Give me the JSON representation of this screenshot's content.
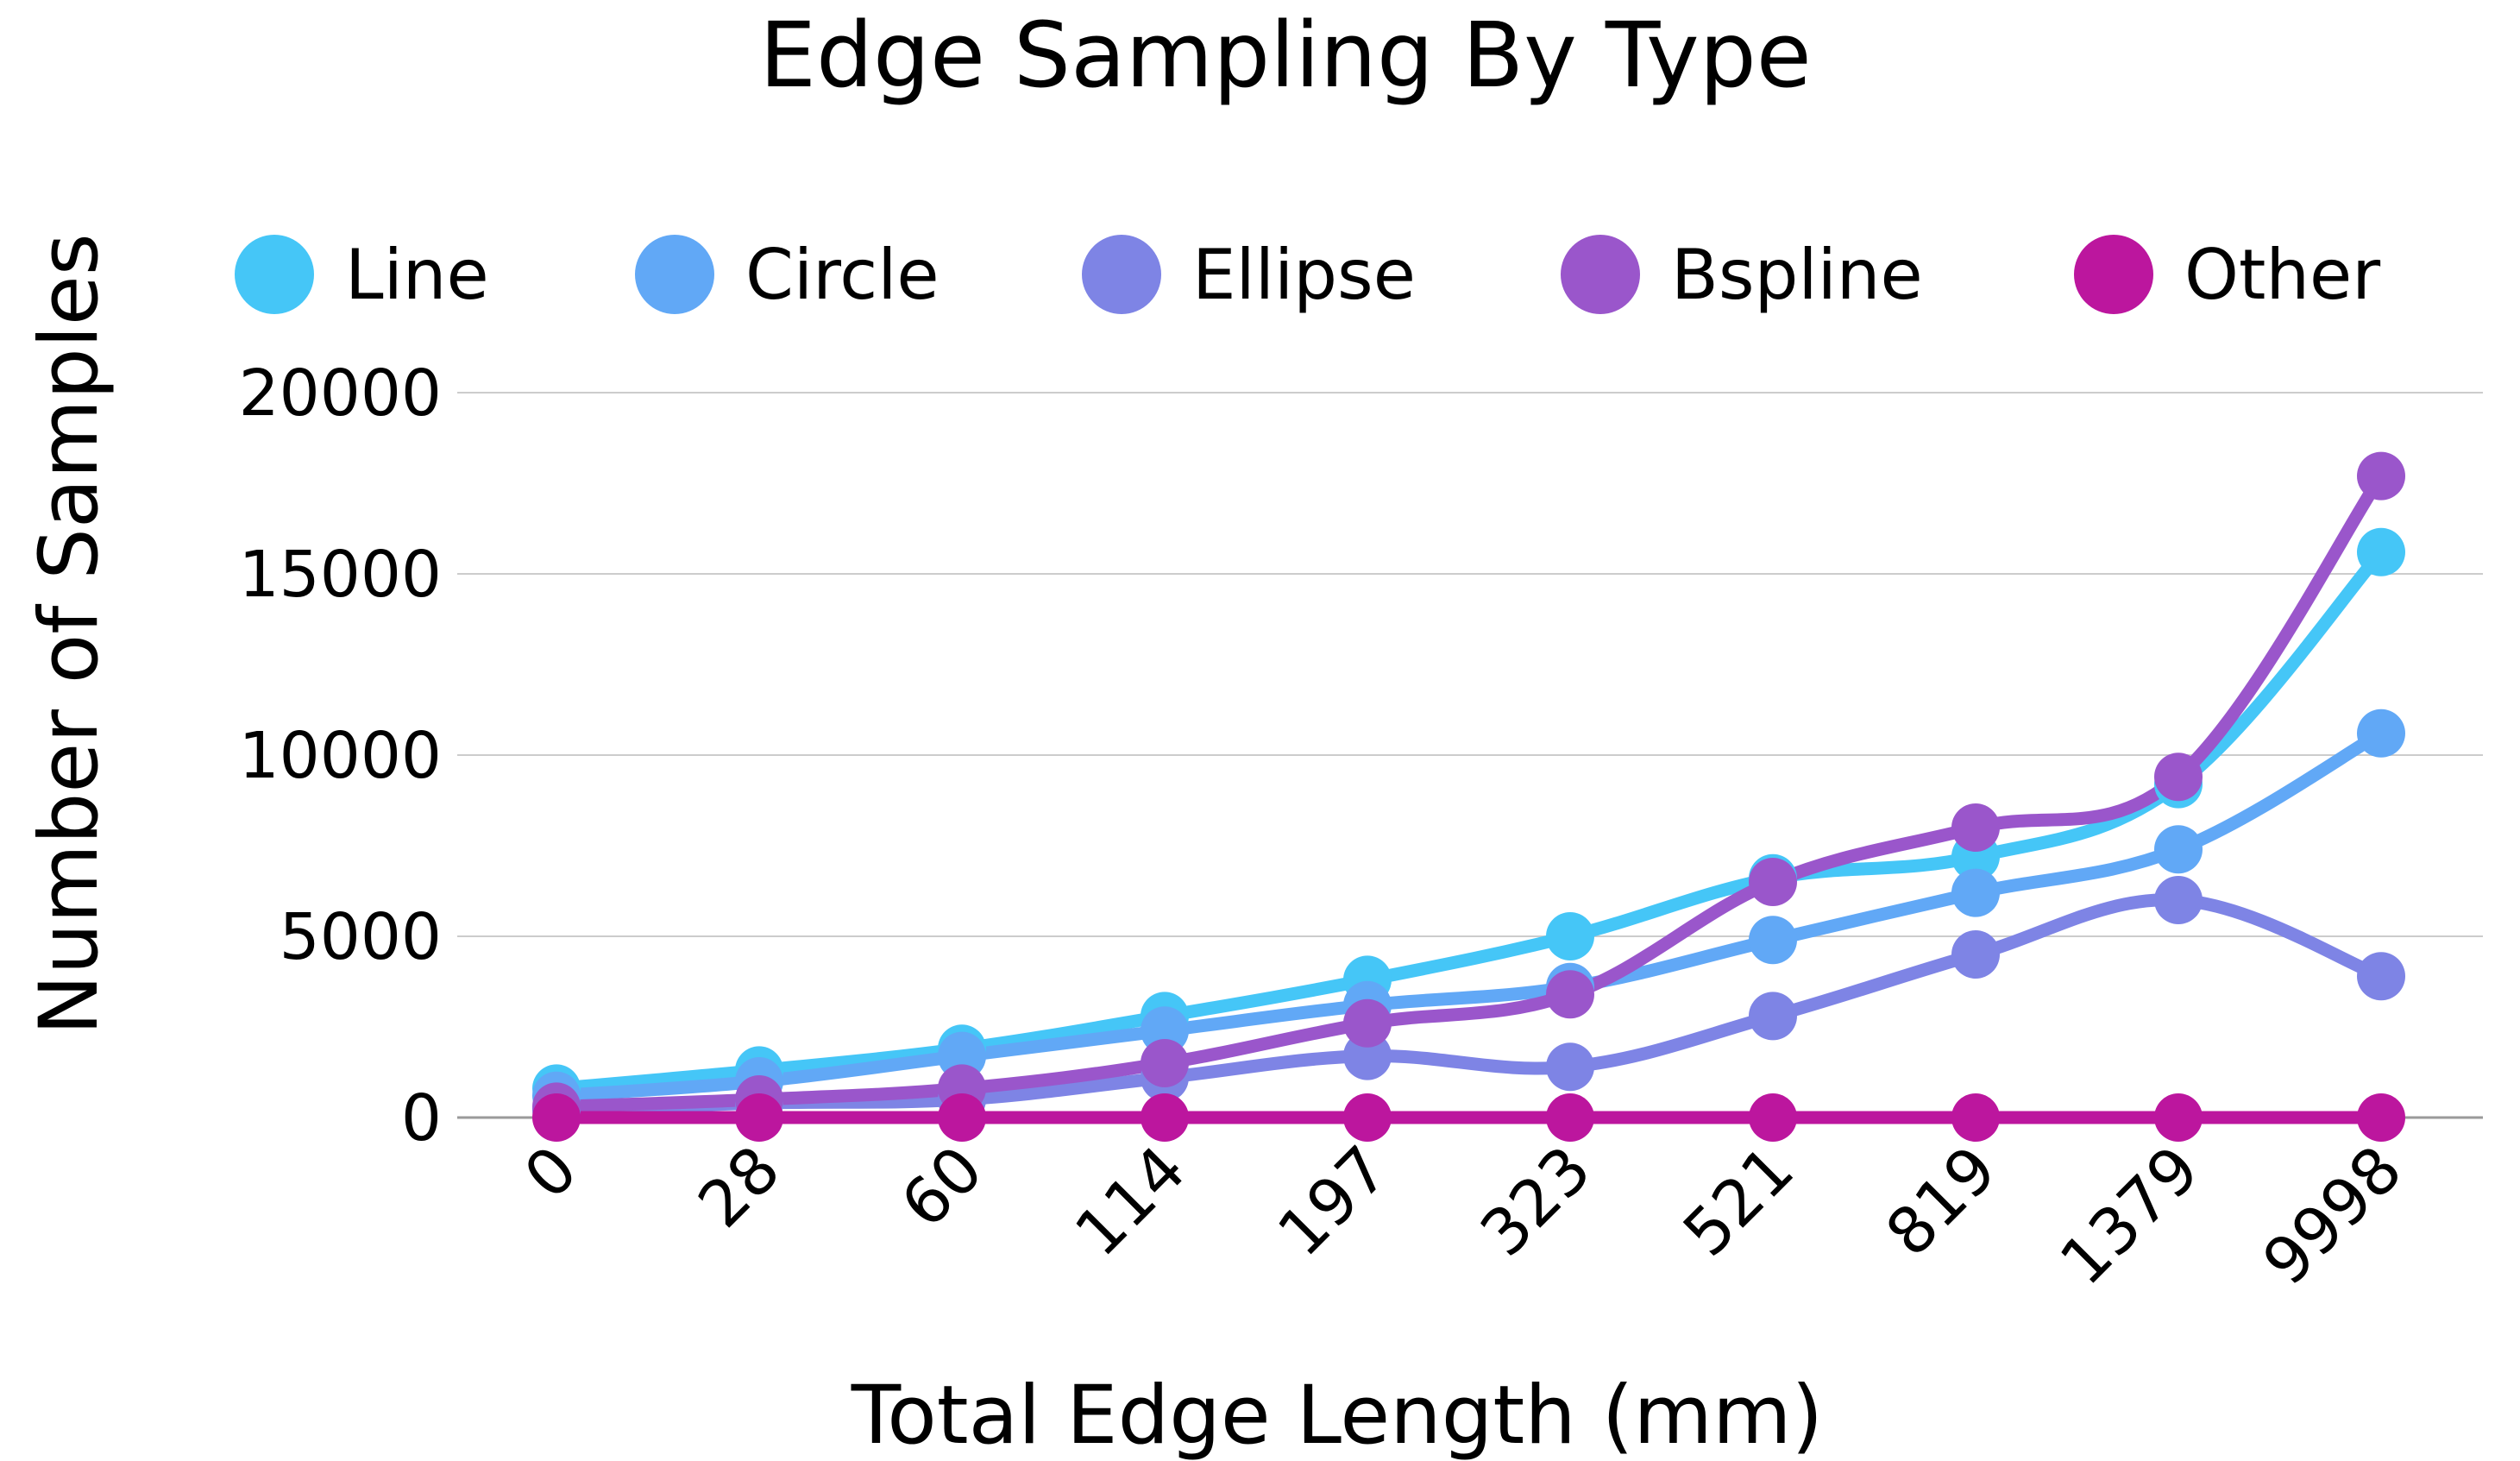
{
  "chart_data": {
    "type": "line",
    "title": "Edge Sampling By Type",
    "xlabel": "Total Edge Length (mm)",
    "ylabel": "Number of Samples",
    "categories": [
      "0",
      "28",
      "60",
      "114",
      "197",
      "323",
      "521",
      "819",
      "1379",
      "9998"
    ],
    "y_ticks": [
      "0",
      "5000",
      "10000",
      "15000",
      "20000"
    ],
    "ylim": [
      0,
      20000
    ],
    "grid": true,
    "legend_position": "top",
    "series": [
      {
        "name": "Line",
        "color": "#45C6F7",
        "values": [
          800,
          1300,
          1900,
          2800,
          3800,
          5000,
          6600,
          7200,
          9200,
          15600
        ]
      },
      {
        "name": "Circle",
        "color": "#61A8F6",
        "values": [
          600,
          1000,
          1700,
          2400,
          3100,
          3600,
          4900,
          6200,
          7400,
          10600
        ]
      },
      {
        "name": "Ellipse",
        "color": "#7E84E5",
        "values": [
          200,
          400,
          500,
          1100,
          1700,
          1400,
          2800,
          4500,
          6000,
          3900
        ]
      },
      {
        "name": "Bspline",
        "color": "#9A56CB",
        "values": [
          300,
          500,
          800,
          1500,
          2600,
          3400,
          6500,
          8000,
          9400,
          17700
        ]
      },
      {
        "name": "Other",
        "color": "#BC169E",
        "values": [
          0,
          0,
          0,
          0,
          0,
          0,
          0,
          0,
          0,
          0
        ]
      }
    ]
  }
}
